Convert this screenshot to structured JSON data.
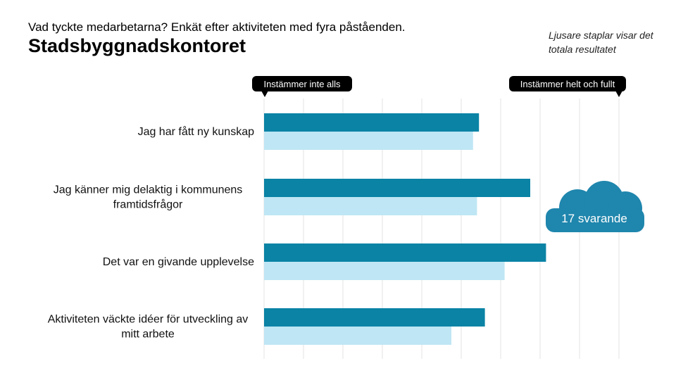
{
  "header": {
    "subtitle": "Vad tyckte medarbetarna? Enkät efter aktiviteten med fyra påståenden.",
    "title": "Stadsbyggnadskontoret"
  },
  "legend_note": "Ljusare staplar visar det totala resultatet",
  "colors": {
    "office": "#0a83a5",
    "total": "#bfe6f4",
    "grid": "#e3e3e3",
    "callout": "#000000",
    "cloud": "#1f86ad"
  },
  "respondents": {
    "label": "17 svarande"
  },
  "chart_data": {
    "type": "bar",
    "orientation": "horizontal",
    "xlim": [
      0,
      9
    ],
    "grid_step": 1,
    "scale_min_label": "Instämmer inte alls",
    "scale_max_label": "Instämmer helt och fullt",
    "categories": [
      "Jag har fått ny kunskap",
      "Jag känner mig delaktig i kommunens framtidsfrågor",
      "Det var en givande upplevelse",
      "Aktiviteten väckte idéer för utveckling av mitt arbete"
    ],
    "category_lines": [
      [
        "Jag har fått ny kunskap"
      ],
      [
        "Jag känner mig delaktig i kommunens",
        "framtidsfrågor"
      ],
      [
        "Det var en givande upplevelse"
      ],
      [
        "Aktiviteten väckte idéer för utveckling av",
        "mitt arbete"
      ]
    ],
    "series": [
      {
        "name": "Stadsbyggnadskontoret",
        "values": [
          5.45,
          6.75,
          7.15,
          5.6
        ]
      },
      {
        "name": "Totalt resultat",
        "values": [
          5.3,
          5.4,
          6.1,
          4.75
        ]
      }
    ]
  }
}
